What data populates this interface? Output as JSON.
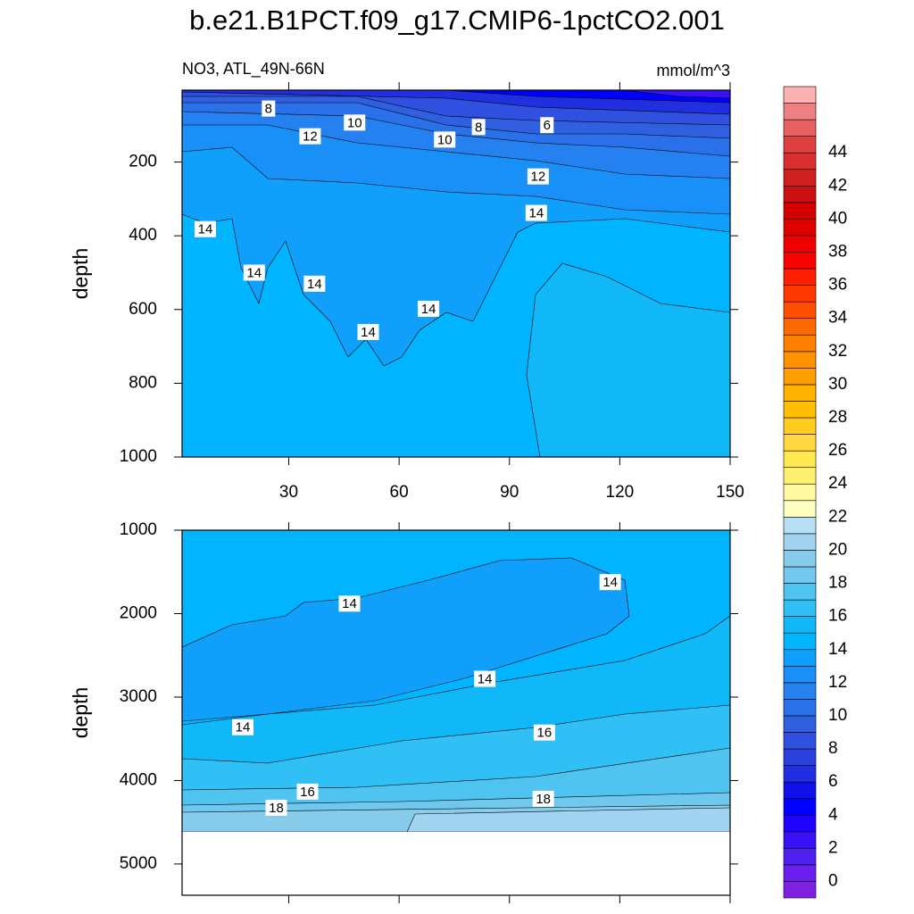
{
  "title": "b.e21.B1PCT.f09_g17.CMIP6-1pctCO2.001",
  "chart_data": [
    {
      "type": "contour",
      "subtitle_left": "NO3, ATL_49N-66N",
      "subtitle_right": "mmol/m^3",
      "ylabel": "depth",
      "xlim": [
        1,
        150
      ],
      "ylim": [
        1000,
        5
      ],
      "xticks": [
        30,
        60,
        90,
        120,
        150
      ],
      "yticks": [
        200,
        400,
        600,
        800,
        1000
      ],
      "xtick_labels": true,
      "contour_labels": [
        {
          "x": 24.5,
          "y": 55,
          "value": 8
        },
        {
          "x": 47.9,
          "y": 93,
          "value": 10
        },
        {
          "x": 35.8,
          "y": 130,
          "value": 12
        },
        {
          "x": 72.4,
          "y": 139,
          "value": 10
        },
        {
          "x": 81.6,
          "y": 105,
          "value": 8
        },
        {
          "x": 100.2,
          "y": 100,
          "value": 6
        },
        {
          "x": 97.8,
          "y": 239,
          "value": 12
        },
        {
          "x": 97.3,
          "y": 338,
          "value": 14
        },
        {
          "x": 7.3,
          "y": 382,
          "value": 14
        },
        {
          "x": 20.6,
          "y": 500,
          "value": 14
        },
        {
          "x": 37,
          "y": 530,
          "value": 14
        },
        {
          "x": 51.6,
          "y": 661,
          "value": 14
        },
        {
          "x": 68,
          "y": 598,
          "value": 14
        }
      ]
    },
    {
      "type": "contour",
      "ylabel": "depth",
      "xlim": [
        1,
        150
      ],
      "ylim": [
        5375,
        1000
      ],
      "xticks": [
        30,
        60,
        90,
        120,
        150
      ],
      "yticks": [
        1000,
        2000,
        3000,
        4000,
        5000
      ],
      "xtick_labels": false,
      "contour_labels": [
        {
          "x": 46.5,
          "y": 1880,
          "value": 14
        },
        {
          "x": 117.4,
          "y": 1622,
          "value": 14
        },
        {
          "x": 83.3,
          "y": 2781,
          "value": 14
        },
        {
          "x": 17.5,
          "y": 3361,
          "value": 14
        },
        {
          "x": 99.5,
          "y": 3425,
          "value": 16
        },
        {
          "x": 35.1,
          "y": 4133,
          "value": 16
        },
        {
          "x": 26.6,
          "y": 4326,
          "value": 18
        },
        {
          "x": 99.2,
          "y": 4219,
          "value": 18
        }
      ]
    },
    {
      "type": "colorbar",
      "range": [
        -1,
        48
      ],
      "ticks": [
        0,
        2,
        4,
        6,
        8,
        10,
        12,
        14,
        16,
        18,
        20,
        22,
        24,
        26,
        28,
        30,
        32,
        34,
        36,
        38,
        40,
        42,
        44
      ],
      "colors": [
        "#8020e0",
        "#6a1ff0",
        "#5020f0",
        "#3a10f5",
        "#2000ff",
        "#0000ff",
        "#1010e8",
        "#2030e0",
        "#2a40dd",
        "#3050e0",
        "#3060e0",
        "#2a70e8",
        "#2580f0",
        "#1890f8",
        "#10a0fc",
        "#00b4ff",
        "#10b8f8",
        "#30c0f5",
        "#50c4f0",
        "#70c8ee",
        "#88ccec",
        "#a0d4f0",
        "#b8e0f4",
        "#ffffc0",
        "#fffaa0",
        "#fff070",
        "#ffe850",
        "#ffd840",
        "#ffcc20",
        "#ffbe00",
        "#ffb000",
        "#ffa000",
        "#ff9000",
        "#ff8000",
        "#ff6a00",
        "#ff5000",
        "#ff3800",
        "#ff2000",
        "#ff0000",
        "#f00000",
        "#e00000",
        "#d40000",
        "#cc1010",
        "#d02020",
        "#d83030",
        "#e04040",
        "#e86060",
        "#f08080",
        "#ffb0b0"
      ]
    }
  ]
}
